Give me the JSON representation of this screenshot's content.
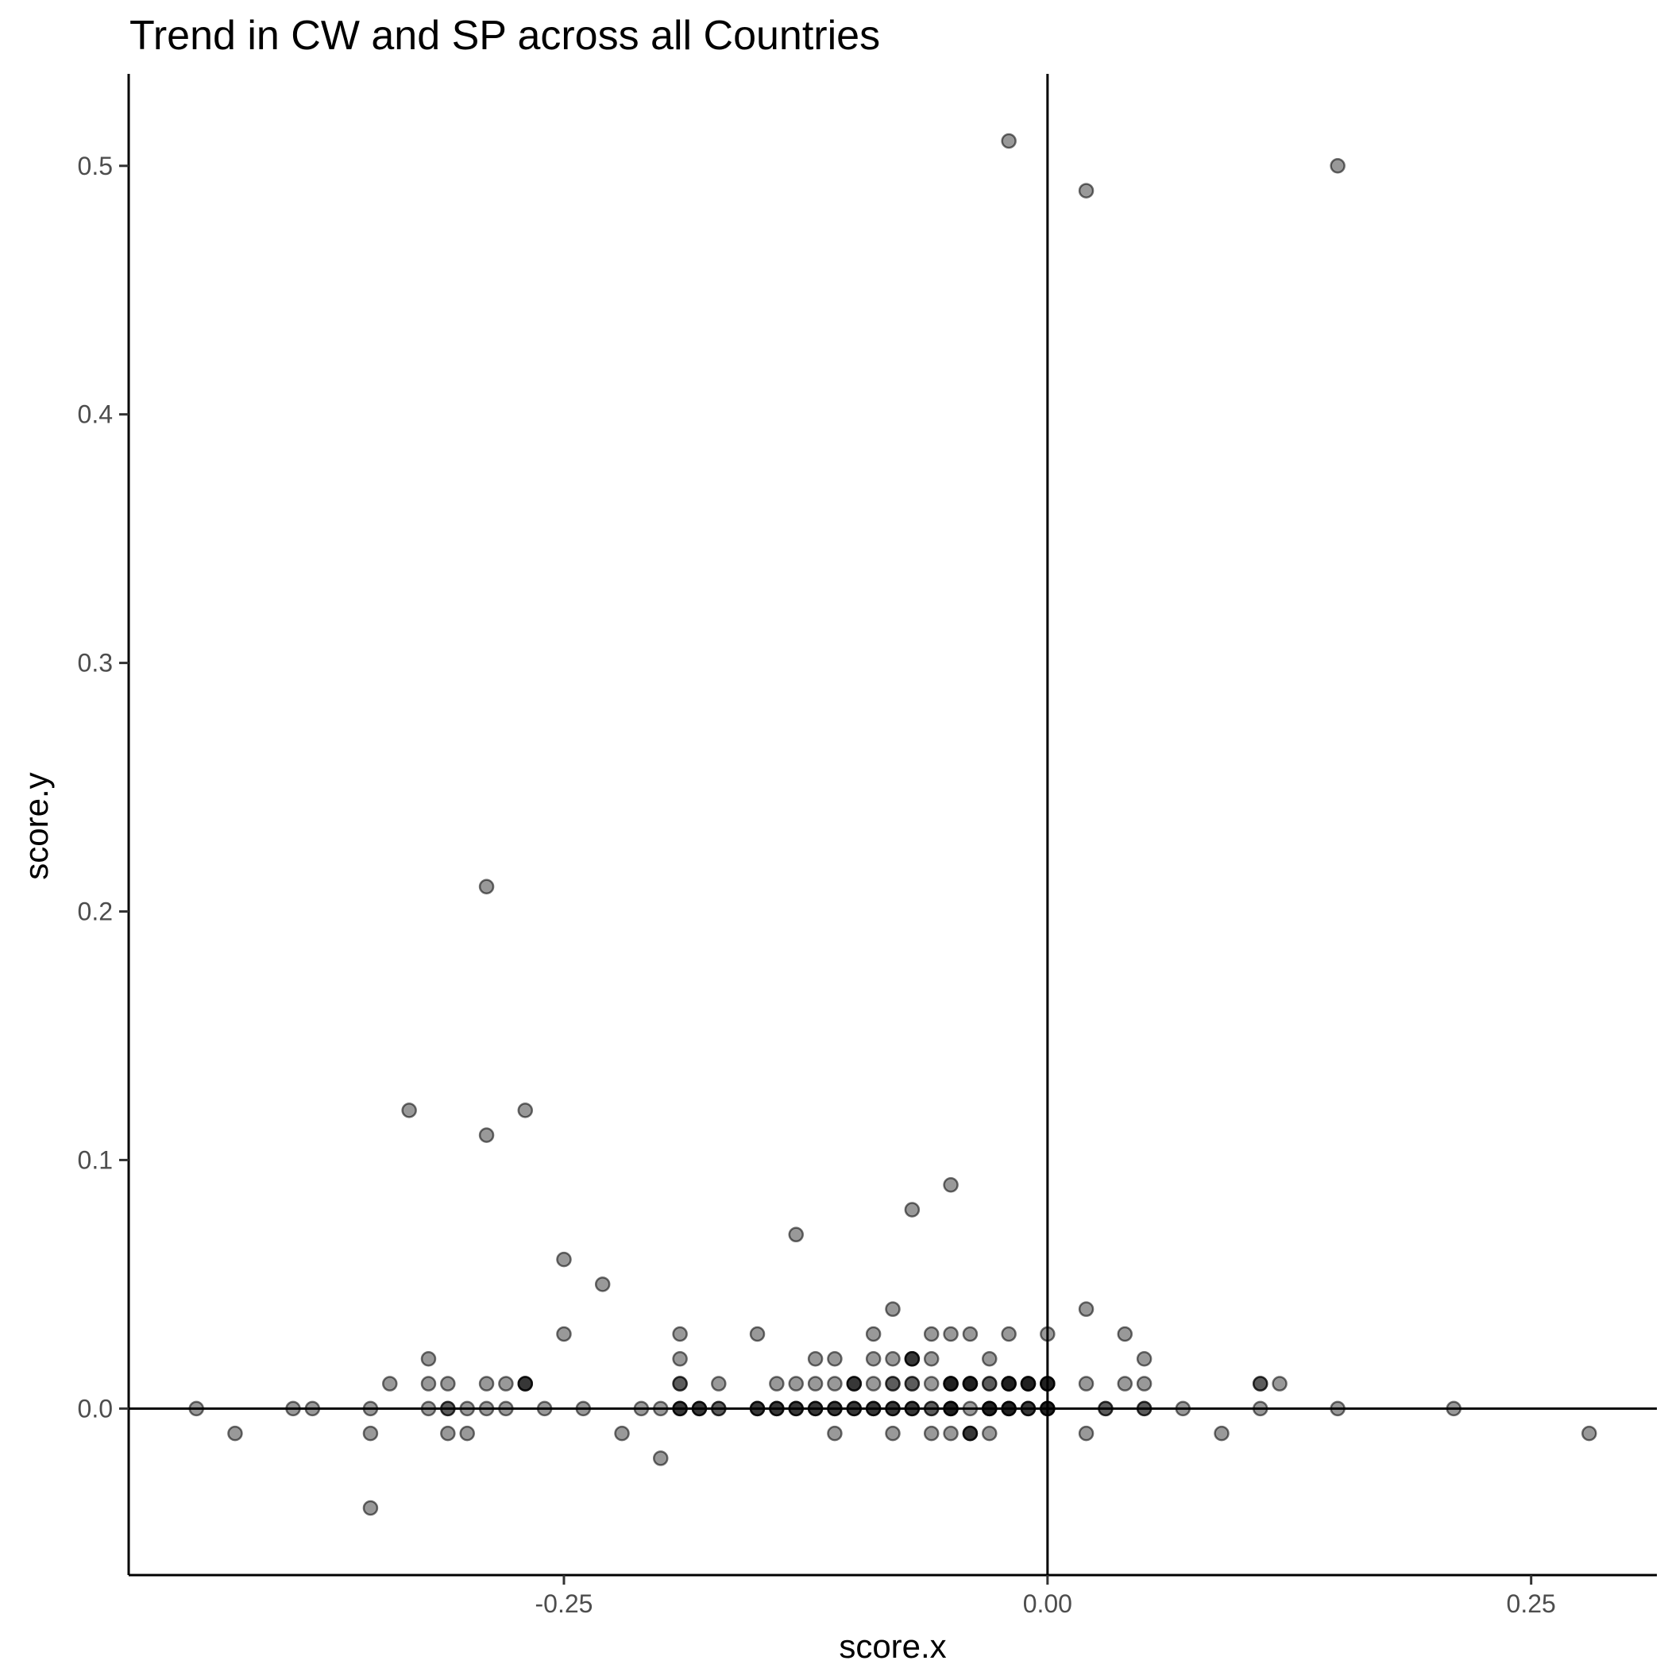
{
  "chart_data": {
    "type": "scatter",
    "title": "Trend in CW and SP across all Countries",
    "xlabel": "score.x",
    "ylabel": "score.y",
    "xlim": [
      -0.475,
      0.315
    ],
    "ylim": [
      -0.067,
      0.537
    ],
    "x_ticks": [
      {
        "value": -0.25,
        "label": "-0.25"
      },
      {
        "value": 0.0,
        "label": "0.00"
      },
      {
        "value": 0.25,
        "label": "0.25"
      }
    ],
    "y_ticks": [
      {
        "value": 0.0,
        "label": "0.0"
      },
      {
        "value": 0.1,
        "label": "0.1"
      },
      {
        "value": 0.2,
        "label": "0.2"
      },
      {
        "value": 0.3,
        "label": "0.3"
      },
      {
        "value": 0.4,
        "label": "0.4"
      },
      {
        "value": 0.5,
        "label": "0.5"
      }
    ],
    "reference_lines": {
      "x": 0,
      "y": 0
    },
    "grid": false,
    "legend": "none",
    "point_color": "#000000",
    "point_opacity": 0.4,
    "points": [
      [
        -0.44,
        0.0
      ],
      [
        -0.42,
        -0.01
      ],
      [
        -0.39,
        0.0
      ],
      [
        -0.38,
        0.0
      ],
      [
        -0.35,
        0.0
      ],
      [
        -0.35,
        -0.01
      ],
      [
        -0.35,
        -0.04
      ],
      [
        -0.34,
        0.01
      ],
      [
        -0.33,
        0.12
      ],
      [
        -0.32,
        0.02
      ],
      [
        -0.32,
        0.01
      ],
      [
        -0.32,
        0.0
      ],
      [
        -0.31,
        0.01
      ],
      [
        -0.31,
        0.0
      ],
      [
        -0.31,
        0.0
      ],
      [
        -0.31,
        -0.01
      ],
      [
        -0.3,
        0.0
      ],
      [
        -0.3,
        -0.01
      ],
      [
        -0.29,
        0.21
      ],
      [
        -0.29,
        0.11
      ],
      [
        -0.29,
        0.01
      ],
      [
        -0.29,
        0.0
      ],
      [
        -0.28,
        0.01
      ],
      [
        -0.28,
        0.0
      ],
      [
        -0.27,
        0.12
      ],
      [
        -0.27,
        0.01
      ],
      [
        -0.27,
        0.01
      ],
      [
        -0.27,
        0.01
      ],
      [
        -0.26,
        0.0
      ],
      [
        -0.25,
        0.06
      ],
      [
        -0.25,
        0.03
      ],
      [
        -0.24,
        0.0
      ],
      [
        -0.23,
        0.05
      ],
      [
        -0.22,
        -0.01
      ],
      [
        -0.21,
        0.0
      ],
      [
        -0.2,
        0.0
      ],
      [
        -0.2,
        -0.02
      ],
      [
        -0.19,
        0.03
      ],
      [
        -0.19,
        0.02
      ],
      [
        -0.19,
        0.01
      ],
      [
        -0.19,
        0.01
      ],
      [
        -0.19,
        0.0
      ],
      [
        -0.19,
        0.0
      ],
      [
        -0.19,
        0.0
      ],
      [
        -0.18,
        0.0
      ],
      [
        -0.18,
        0.0
      ],
      [
        -0.18,
        0.0
      ],
      [
        -0.17,
        0.01
      ],
      [
        -0.17,
        0.0
      ],
      [
        -0.17,
        0.0
      ],
      [
        -0.15,
        0.03
      ],
      [
        -0.15,
        0.0
      ],
      [
        -0.15,
        0.0
      ],
      [
        -0.15,
        0.0
      ],
      [
        -0.14,
        0.01
      ],
      [
        -0.14,
        0.0
      ],
      [
        -0.14,
        0.0
      ],
      [
        -0.14,
        0.0
      ],
      [
        -0.13,
        0.07
      ],
      [
        -0.13,
        0.01
      ],
      [
        -0.13,
        0.0
      ],
      [
        -0.13,
        0.0
      ],
      [
        -0.13,
        0.0
      ],
      [
        -0.12,
        0.02
      ],
      [
        -0.12,
        0.01
      ],
      [
        -0.12,
        0.0
      ],
      [
        -0.12,
        0.0
      ],
      [
        -0.12,
        0.0
      ],
      [
        -0.11,
        0.02
      ],
      [
        -0.11,
        0.01
      ],
      [
        -0.11,
        0.0
      ],
      [
        -0.11,
        0.0
      ],
      [
        -0.11,
        0.0
      ],
      [
        -0.11,
        -0.01
      ],
      [
        -0.1,
        0.01
      ],
      [
        -0.1,
        0.01
      ],
      [
        -0.1,
        0.01
      ],
      [
        -0.1,
        0.0
      ],
      [
        -0.1,
        0.0
      ],
      [
        -0.1,
        0.0
      ],
      [
        -0.09,
        0.03
      ],
      [
        -0.09,
        0.02
      ],
      [
        -0.09,
        0.01
      ],
      [
        -0.09,
        0.0
      ],
      [
        -0.09,
        0.0
      ],
      [
        -0.09,
        0.0
      ],
      [
        -0.08,
        0.04
      ],
      [
        -0.08,
        0.02
      ],
      [
        -0.08,
        0.01
      ],
      [
        -0.08,
        0.01
      ],
      [
        -0.08,
        0.0
      ],
      [
        -0.08,
        0.0
      ],
      [
        -0.08,
        0.0
      ],
      [
        -0.08,
        -0.01
      ],
      [
        -0.07,
        0.08
      ],
      [
        -0.07,
        0.02
      ],
      [
        -0.07,
        0.02
      ],
      [
        -0.07,
        0.02
      ],
      [
        -0.07,
        0.01
      ],
      [
        -0.07,
        0.01
      ],
      [
        -0.07,
        0.0
      ],
      [
        -0.07,
        0.0
      ],
      [
        -0.07,
        0.0
      ],
      [
        -0.06,
        0.03
      ],
      [
        -0.06,
        0.02
      ],
      [
        -0.06,
        0.01
      ],
      [
        -0.06,
        0.0
      ],
      [
        -0.06,
        0.0
      ],
      [
        -0.06,
        -0.01
      ],
      [
        -0.05,
        0.09
      ],
      [
        -0.05,
        0.03
      ],
      [
        -0.05,
        0.01
      ],
      [
        -0.05,
        0.01
      ],
      [
        -0.05,
        0.01
      ],
      [
        -0.05,
        0.01
      ],
      [
        -0.05,
        0.0
      ],
      [
        -0.05,
        0.0
      ],
      [
        -0.05,
        0.0
      ],
      [
        -0.05,
        0.0
      ],
      [
        -0.05,
        -0.01
      ],
      [
        -0.04,
        0.03
      ],
      [
        -0.04,
        0.01
      ],
      [
        -0.04,
        0.01
      ],
      [
        -0.04,
        0.01
      ],
      [
        -0.04,
        0.01
      ],
      [
        -0.04,
        0.0
      ],
      [
        -0.04,
        -0.01
      ],
      [
        -0.04,
        -0.01
      ],
      [
        -0.04,
        -0.01
      ],
      [
        -0.03,
        0.02
      ],
      [
        -0.03,
        0.01
      ],
      [
        -0.03,
        0.01
      ],
      [
        -0.03,
        0.0
      ],
      [
        -0.03,
        0.0
      ],
      [
        -0.03,
        0.0
      ],
      [
        -0.03,
        0.0
      ],
      [
        -0.03,
        -0.01
      ],
      [
        -0.02,
        0.51
      ],
      [
        -0.02,
        0.03
      ],
      [
        -0.02,
        0.01
      ],
      [
        -0.02,
        0.01
      ],
      [
        -0.02,
        0.01
      ],
      [
        -0.02,
        0.01
      ],
      [
        -0.02,
        0.0
      ],
      [
        -0.02,
        0.0
      ],
      [
        -0.02,
        0.0
      ],
      [
        -0.02,
        0.0
      ],
      [
        -0.01,
        0.01
      ],
      [
        -0.01,
        0.01
      ],
      [
        -0.01,
        0.01
      ],
      [
        -0.01,
        0.01
      ],
      [
        -0.01,
        0.0
      ],
      [
        -0.01,
        0.0
      ],
      [
        -0.01,
        0.0
      ],
      [
        0.0,
        0.03
      ],
      [
        0.0,
        0.01
      ],
      [
        0.0,
        0.01
      ],
      [
        0.0,
        0.01
      ],
      [
        0.0,
        0.01
      ],
      [
        0.0,
        0.0
      ],
      [
        0.0,
        0.0
      ],
      [
        0.0,
        0.0
      ],
      [
        0.0,
        0.0
      ],
      [
        0.02,
        0.49
      ],
      [
        0.02,
        0.04
      ],
      [
        0.02,
        0.01
      ],
      [
        0.02,
        -0.01
      ],
      [
        0.03,
        0.0
      ],
      [
        0.03,
        0.0
      ],
      [
        0.04,
        0.03
      ],
      [
        0.04,
        0.01
      ],
      [
        0.05,
        0.02
      ],
      [
        0.05,
        0.01
      ],
      [
        0.05,
        0.0
      ],
      [
        0.05,
        0.0
      ],
      [
        0.07,
        0.0
      ],
      [
        0.09,
        -0.01
      ],
      [
        0.11,
        0.01
      ],
      [
        0.11,
        0.01
      ],
      [
        0.11,
        0.0
      ],
      [
        0.12,
        0.01
      ],
      [
        0.15,
        0.5
      ],
      [
        0.15,
        0.0
      ],
      [
        0.21,
        0.0
      ],
      [
        0.28,
        -0.01
      ]
    ]
  }
}
